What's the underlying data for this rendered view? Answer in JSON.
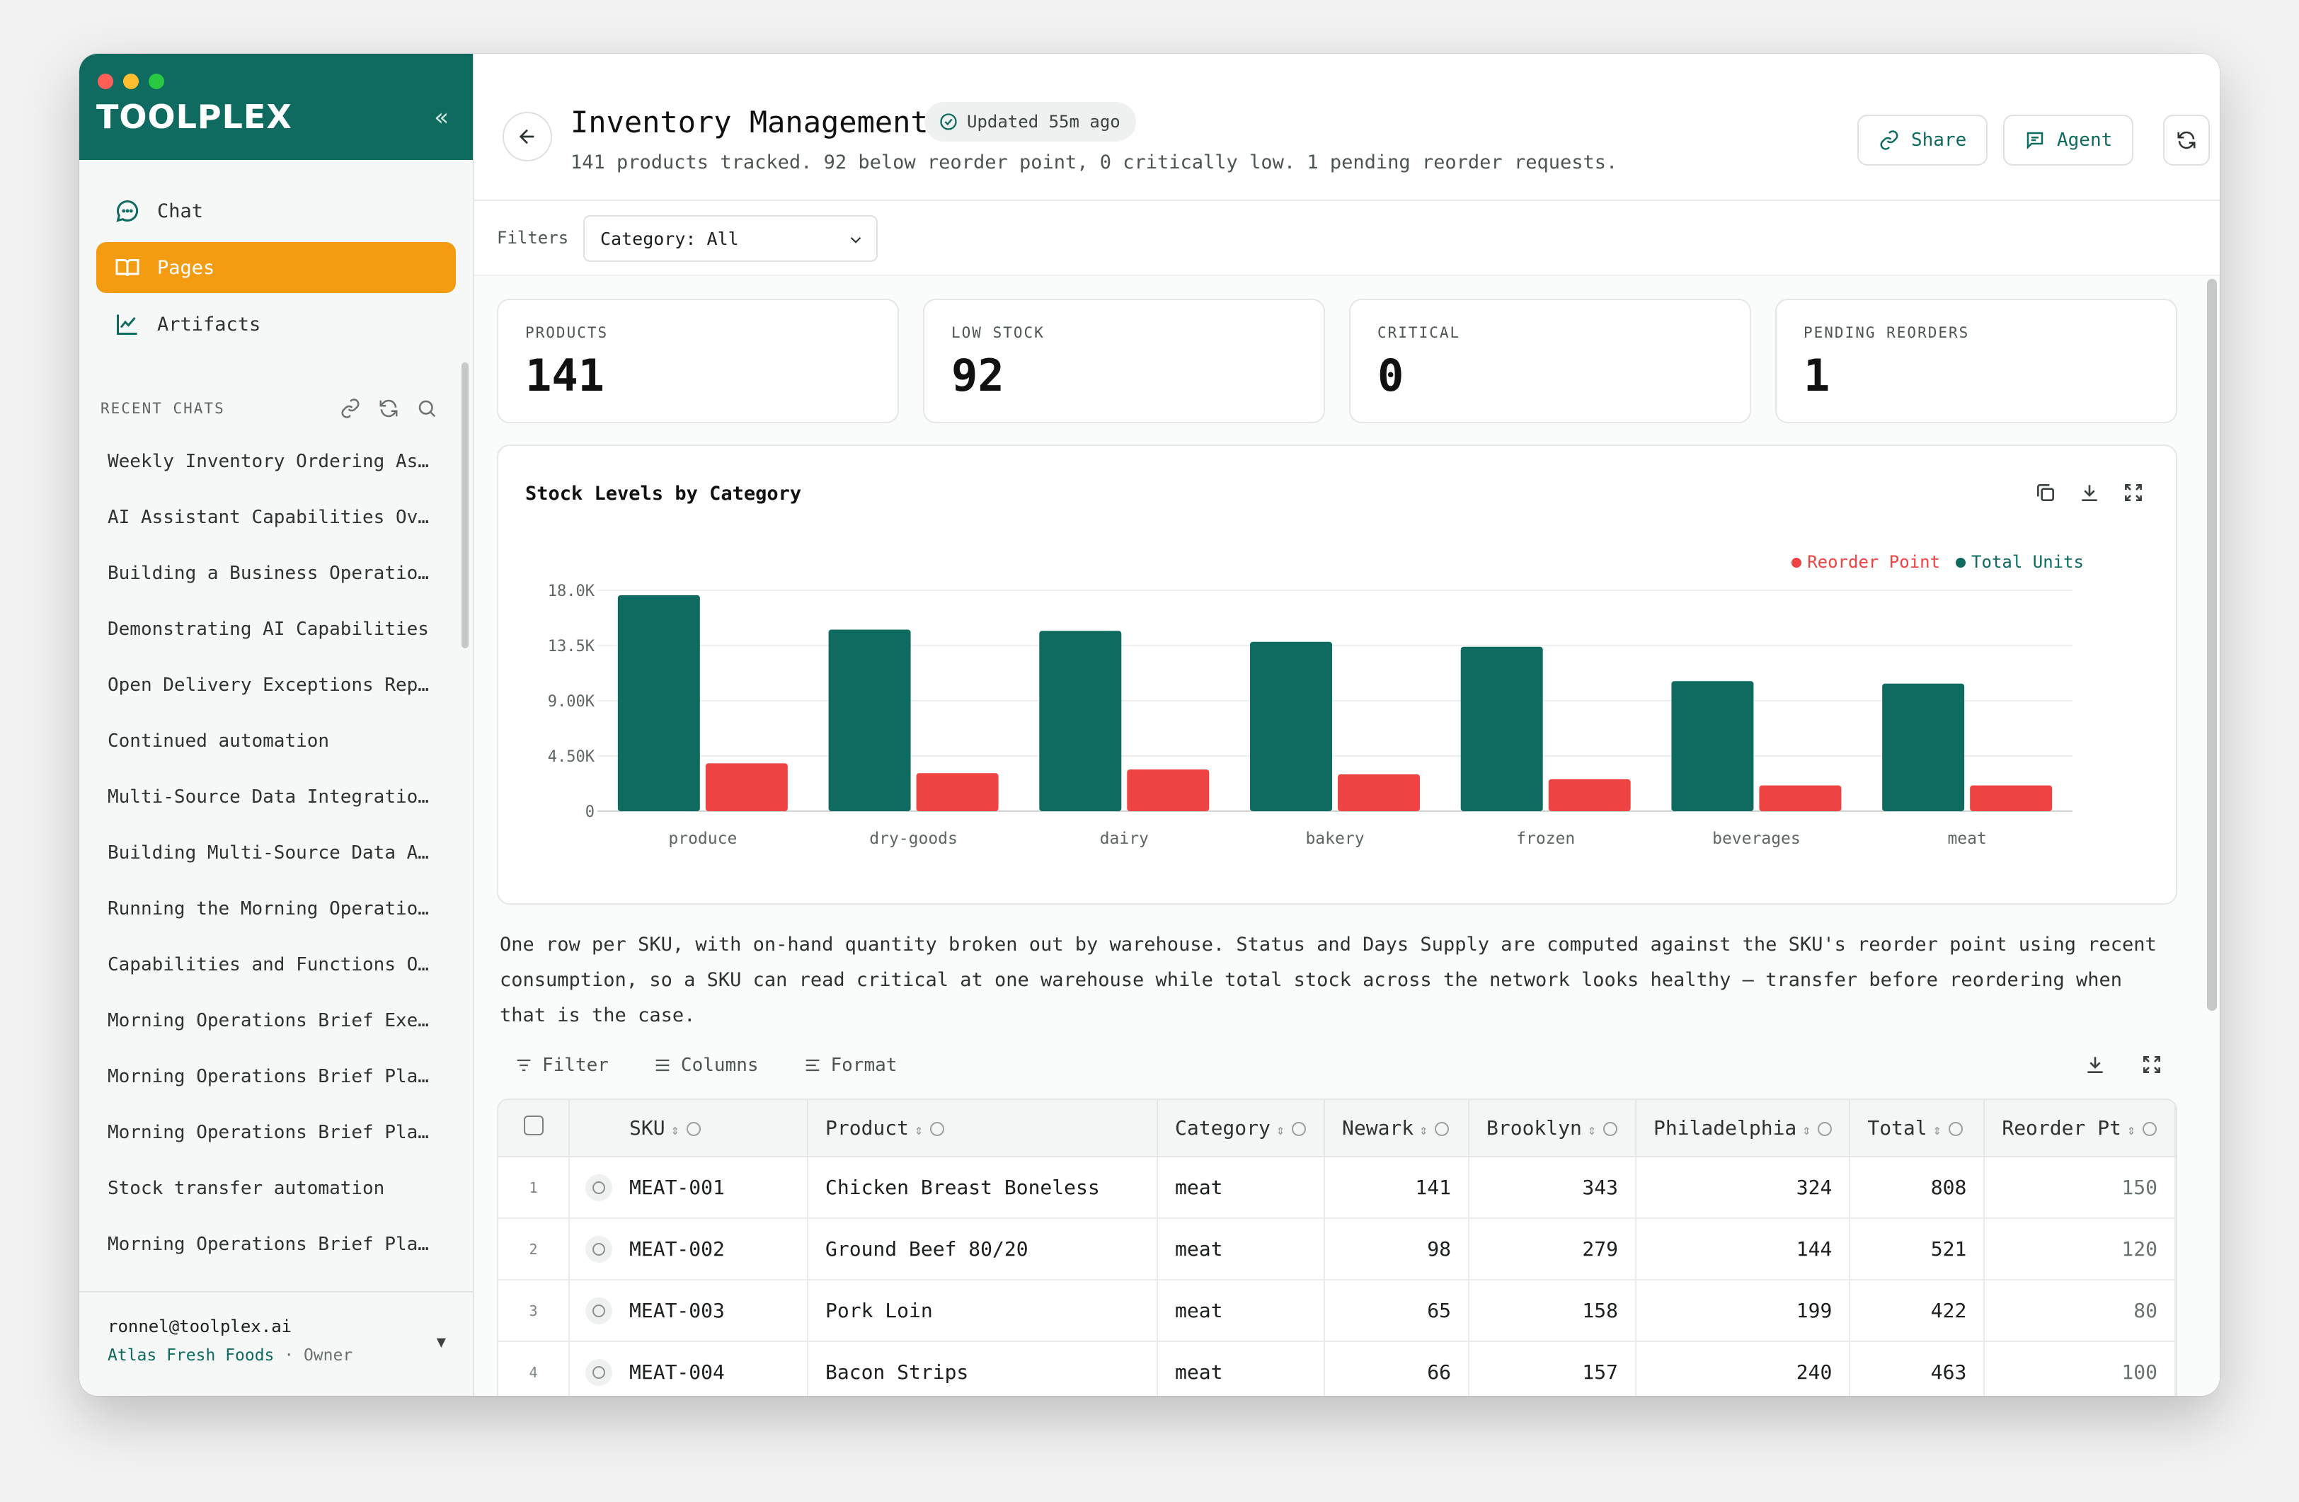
{
  "sidebar": {
    "brand": "TOOLPLEX",
    "nav": [
      {
        "label": "Chat",
        "icon": "chat-icon"
      },
      {
        "label": "Pages",
        "icon": "book-icon"
      },
      {
        "label": "Artifacts",
        "icon": "chart-line-icon"
      }
    ],
    "recent_title": "RECENT CHATS",
    "chats": [
      "Weekly Inventory Ordering As…",
      "AI Assistant Capabilities Ov…",
      "Building a Business Operatio…",
      "Demonstrating AI Capabilities",
      "Open Delivery Exceptions Rep…",
      "Continued automation",
      "Multi-Source Data Integratio…",
      "Building Multi-Source Data A…",
      "Running the Morning Operatio…",
      "Capabilities and Functions O…",
      "Morning Operations Brief Exe…",
      "Morning Operations Brief Pla…",
      "Morning Operations Brief Pla…",
      "Stock transfer automation",
      "Morning Operations Brief Pla…",
      "Morning Operations Brief Pla…"
    ],
    "account": {
      "email": "ronnel@toolplex.ai",
      "org": "Atlas Fresh Foods",
      "role": "· Owner"
    }
  },
  "header": {
    "title": "Inventory Management",
    "updated": "Updated 55m ago",
    "subtitle": "141 products tracked. 92 below reorder point, 0 critically low. 1 pending reorder requests.",
    "share_label": "Share",
    "agent_label": "Agent"
  },
  "filters": {
    "label": "Filters",
    "category": "Category: All"
  },
  "kpis": [
    {
      "label": "PRODUCTS",
      "value": "141"
    },
    {
      "label": "LOW STOCK",
      "value": "92"
    },
    {
      "label": "CRITICAL",
      "value": "0"
    },
    {
      "label": "PENDING REORDERS",
      "value": "1"
    }
  ],
  "colors": {
    "teal": "#0f6b60",
    "red": "#ef4444",
    "accent": "#f39c12"
  },
  "chart_data": {
    "type": "bar",
    "title": "Stock Levels by Category",
    "categories": [
      "produce",
      "dry-goods",
      "dairy",
      "bakery",
      "frozen",
      "beverages",
      "meat"
    ],
    "series": [
      {
        "name": "Total Units",
        "color": "#0f6b60",
        "values": [
          17600,
          14800,
          14700,
          13800,
          13400,
          10600,
          10400
        ]
      },
      {
        "name": "Reorder Point",
        "color": "#ef4444",
        "values": [
          3900,
          3100,
          3400,
          3000,
          2600,
          2100,
          2100
        ]
      }
    ],
    "yticks": [
      "0",
      "4.50K",
      "9.00K",
      "13.5K",
      "18.0K"
    ],
    "ylim": [
      0,
      18000
    ],
    "legend_order": [
      "Reorder Point",
      "Total Units"
    ],
    "legend_position": "top-right"
  },
  "description": "One row per SKU, with on-hand quantity broken out by warehouse. Status and Days Supply are computed against the SKU's reorder point using recent consumption, so a SKU can read critical at one warehouse while total stock across the network looks healthy — transfer before reordering when that is the case.",
  "table_tools": {
    "filter": "Filter",
    "columns": "Columns",
    "format": "Format"
  },
  "table": {
    "columns": [
      "SKU",
      "Product",
      "Category",
      "Newark",
      "Brooklyn",
      "Philadelphia",
      "Total",
      "Reorder Pt"
    ],
    "rows": [
      {
        "n": "1",
        "sku": "MEAT-001",
        "product": "Chicken Breast Boneless",
        "category": "meat",
        "newark": "141",
        "brooklyn": "343",
        "philadelphia": "324",
        "total": "808",
        "reorder": "150"
      },
      {
        "n": "2",
        "sku": "MEAT-002",
        "product": "Ground Beef 80/20",
        "category": "meat",
        "newark": "98",
        "brooklyn": "279",
        "philadelphia": "144",
        "total": "521",
        "reorder": "120"
      },
      {
        "n": "3",
        "sku": "MEAT-003",
        "product": "Pork Loin",
        "category": "meat",
        "newark": "65",
        "brooklyn": "158",
        "philadelphia": "199",
        "total": "422",
        "reorder": "80"
      },
      {
        "n": "4",
        "sku": "MEAT-004",
        "product": "Bacon Strips",
        "category": "meat",
        "newark": "66",
        "brooklyn": "157",
        "philadelphia": "240",
        "total": "463",
        "reorder": "100"
      }
    ]
  }
}
